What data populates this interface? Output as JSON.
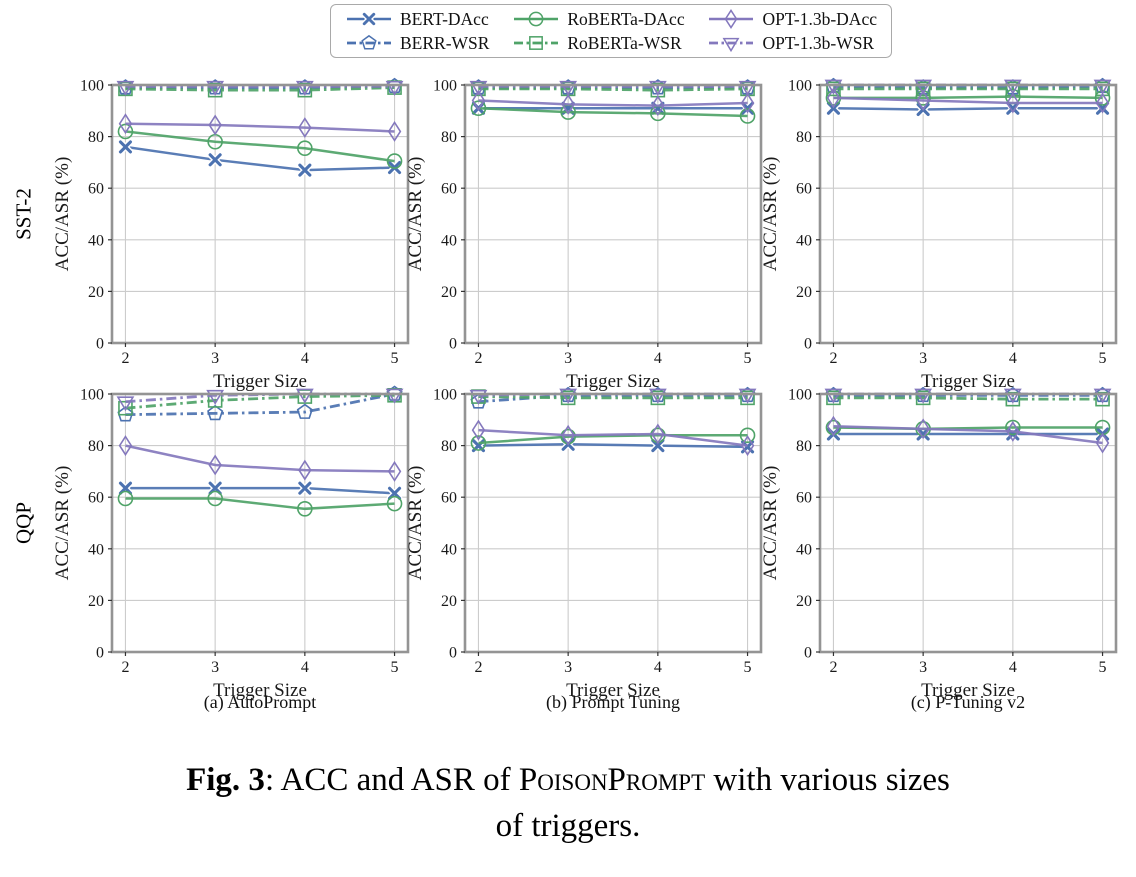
{
  "legend": {
    "items": [
      {
        "label": "BERT-DAcc",
        "color": "#4C72B0",
        "marker": "x",
        "dash": "solid"
      },
      {
        "label": "BERR-WSR",
        "color": "#4C72B0",
        "marker": "pentagon",
        "dash": "dashdot"
      },
      {
        "label": "RoBERTa-DAcc",
        "color": "#4FA368",
        "marker": "circle",
        "dash": "solid"
      },
      {
        "label": "RoBERTa-WSR",
        "color": "#4FA368",
        "marker": "square",
        "dash": "dashdot"
      },
      {
        "label": "OPT-1.3b-DAcc",
        "color": "#8478BD",
        "marker": "diamond",
        "dash": "solid"
      },
      {
        "label": "OPT-1.3b-WSR",
        "color": "#8478BD",
        "marker": "triangle-down",
        "dash": "dashdot"
      }
    ]
  },
  "figure": {
    "row_labels": [
      "SST-2",
      "QQP"
    ],
    "col_captions": [
      "(a) AutoPrompt",
      "(b) Prompt Tuning",
      "(c) P-Tuning v2"
    ],
    "caption": {
      "fig_label": "Fig. 3",
      "separator": ": ",
      "body_pre": "ACC and ASR of ",
      "brand": "PoisonPrompt",
      "body_post": " with various sizes",
      "line2": "of triggers."
    }
  },
  "chart_data": [
    {
      "type": "line",
      "panel": "SST-2 / AutoPrompt",
      "x": [
        2,
        3,
        4,
        5
      ],
      "xlabel": "Trigger Size",
      "ylabel": "ACC/ASR (%)",
      "xlim": [
        1.85,
        5.15
      ],
      "ylim": [
        0,
        100
      ],
      "xticks": [
        2,
        3,
        4,
        5
      ],
      "yticks": [
        0,
        20,
        40,
        60,
        80,
        100
      ],
      "grid": true,
      "series": [
        {
          "name": "BERT-DAcc",
          "values": [
            76,
            71,
            67,
            68
          ]
        },
        {
          "name": "BERR-WSR",
          "values": [
            99,
            99,
            99,
            99.5
          ]
        },
        {
          "name": "RoBERTa-DAcc",
          "values": [
            82,
            78,
            75.5,
            70.5
          ]
        },
        {
          "name": "RoBERTa-WSR",
          "values": [
            98.5,
            98,
            98,
            99
          ]
        },
        {
          "name": "OPT-1.3b-DAcc",
          "values": [
            85,
            84.5,
            83.5,
            82
          ]
        },
        {
          "name": "OPT-1.3b-WSR",
          "values": [
            99.5,
            99.5,
            99.5,
            99.5
          ]
        }
      ]
    },
    {
      "type": "line",
      "panel": "SST-2 / Prompt Tuning",
      "x": [
        2,
        3,
        4,
        5
      ],
      "xlabel": "Trigger Size",
      "ylabel": "ACC/ASR (%)",
      "xlim": [
        1.85,
        5.15
      ],
      "ylim": [
        0,
        100
      ],
      "xticks": [
        2,
        3,
        4,
        5
      ],
      "yticks": [
        0,
        20,
        40,
        60,
        80,
        100
      ],
      "grid": true,
      "series": [
        {
          "name": "BERT-DAcc",
          "values": [
            91,
            91,
            91,
            91
          ]
        },
        {
          "name": "BERR-WSR",
          "values": [
            99,
            99,
            99,
            99
          ]
        },
        {
          "name": "RoBERTa-DAcc",
          "values": [
            91,
            89.5,
            89,
            88
          ]
        },
        {
          "name": "RoBERTa-WSR",
          "values": [
            98.5,
            98.5,
            98,
            98.5
          ]
        },
        {
          "name": "OPT-1.3b-DAcc",
          "values": [
            94,
            92.5,
            92,
            93
          ]
        },
        {
          "name": "OPT-1.3b-WSR",
          "values": [
            99.5,
            99.5,
            99.5,
            99.5
          ]
        }
      ]
    },
    {
      "type": "line",
      "panel": "SST-2 / P-Tuning v2",
      "x": [
        2,
        3,
        4,
        5
      ],
      "xlabel": "Trigger Size",
      "ylabel": "ACC/ASR (%)",
      "xlim": [
        1.85,
        5.15
      ],
      "ylim": [
        0,
        100
      ],
      "xticks": [
        2,
        3,
        4,
        5
      ],
      "yticks": [
        0,
        20,
        40,
        60,
        80,
        100
      ],
      "grid": true,
      "series": [
        {
          "name": "BERT-DAcc",
          "values": [
            91,
            90.5,
            91,
            91
          ]
        },
        {
          "name": "BERR-WSR",
          "values": [
            99.5,
            99,
            99,
            99.5
          ]
        },
        {
          "name": "RoBERTa-DAcc",
          "values": [
            95,
            95,
            95.5,
            95
          ]
        },
        {
          "name": "RoBERTa-WSR",
          "values": [
            98.5,
            98.5,
            98.5,
            98.5
          ]
        },
        {
          "name": "OPT-1.3b-DAcc",
          "values": [
            95,
            94,
            93,
            93
          ]
        },
        {
          "name": "OPT-1.3b-WSR",
          "values": [
            100,
            100,
            100,
            100
          ]
        }
      ]
    },
    {
      "type": "line",
      "panel": "QQP / AutoPrompt",
      "x": [
        2,
        3,
        4,
        5
      ],
      "xlabel": "Trigger Size",
      "ylabel": "ACC/ASR (%)",
      "xlim": [
        1.85,
        5.15
      ],
      "ylim": [
        0,
        100
      ],
      "xticks": [
        2,
        3,
        4,
        5
      ],
      "yticks": [
        0,
        20,
        40,
        60,
        80,
        100
      ],
      "grid": true,
      "series": [
        {
          "name": "BERT-DAcc",
          "values": [
            63.5,
            63.5,
            63.5,
            61.5
          ]
        },
        {
          "name": "BERR-WSR",
          "values": [
            92,
            92.5,
            93,
            100
          ]
        },
        {
          "name": "RoBERTa-DAcc",
          "values": [
            59.5,
            59.5,
            55.5,
            57.5
          ]
        },
        {
          "name": "RoBERTa-WSR",
          "values": [
            94.5,
            97.5,
            99,
            99.5
          ]
        },
        {
          "name": "OPT-1.3b-DAcc",
          "values": [
            80,
            72.5,
            70.5,
            70
          ]
        },
        {
          "name": "OPT-1.3b-WSR",
          "values": [
            97,
            99.5,
            100,
            100
          ]
        }
      ]
    },
    {
      "type": "line",
      "panel": "QQP / Prompt Tuning",
      "x": [
        2,
        3,
        4,
        5
      ],
      "xlabel": "Trigger Size",
      "ylabel": "ACC/ASR (%)",
      "xlim": [
        1.85,
        5.15
      ],
      "ylim": [
        0,
        100
      ],
      "xticks": [
        2,
        3,
        4,
        5
      ],
      "yticks": [
        0,
        20,
        40,
        60,
        80,
        100
      ],
      "grid": true,
      "series": [
        {
          "name": "BERT-DAcc",
          "values": [
            80,
            80.5,
            80,
            79.5
          ]
        },
        {
          "name": "BERR-WSR",
          "values": [
            97,
            99.5,
            99.5,
            99.5
          ]
        },
        {
          "name": "RoBERTa-DAcc",
          "values": [
            81,
            83.5,
            84,
            84
          ]
        },
        {
          "name": "RoBERTa-WSR",
          "values": [
            99,
            98.5,
            98.5,
            98.5
          ]
        },
        {
          "name": "OPT-1.3b-DAcc",
          "values": [
            86,
            84,
            84.5,
            80
          ]
        },
        {
          "name": "OPT-1.3b-WSR",
          "values": [
            99.5,
            100,
            100,
            100
          ]
        }
      ]
    },
    {
      "type": "line",
      "panel": "QQP / P-Tuning v2",
      "x": [
        2,
        3,
        4,
        5
      ],
      "xlabel": "Trigger Size",
      "ylabel": "ACC/ASR (%)",
      "xlim": [
        1.85,
        5.15
      ],
      "ylim": [
        0,
        100
      ],
      "xticks": [
        2,
        3,
        4,
        5
      ],
      "yticks": [
        0,
        20,
        40,
        60,
        80,
        100
      ],
      "grid": true,
      "series": [
        {
          "name": "BERT-DAcc",
          "values": [
            84.5,
            84.5,
            84.5,
            84.5
          ]
        },
        {
          "name": "BERR-WSR",
          "values": [
            99.5,
            99.5,
            99.5,
            99.5
          ]
        },
        {
          "name": "RoBERTa-DAcc",
          "values": [
            87,
            86.5,
            87,
            87
          ]
        },
        {
          "name": "RoBERTa-WSR",
          "values": [
            98.5,
            98.5,
            98,
            98
          ]
        },
        {
          "name": "OPT-1.3b-DAcc",
          "values": [
            87.5,
            86.5,
            85.5,
            81
          ]
        },
        {
          "name": "OPT-1.3b-WSR",
          "values": [
            100,
            100,
            100,
            100
          ]
        }
      ]
    }
  ],
  "style": {
    "frame_color": "#949494",
    "grid_color": "#cccccc",
    "tick_color": "#333333",
    "text_color": "#1a1a1a"
  }
}
